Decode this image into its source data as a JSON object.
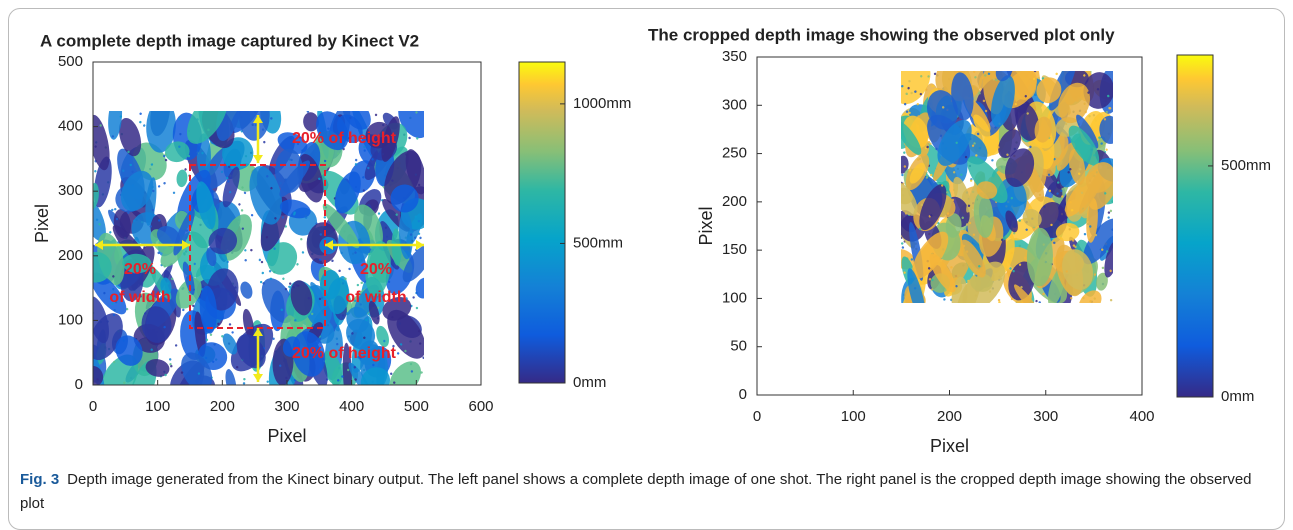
{
  "chart_data": [
    {
      "type": "image",
      "title": "A complete depth image captured by Kinect V2",
      "xlabel": "Pixel",
      "ylabel": "Pixel",
      "xlim": [
        0,
        600
      ],
      "xticks": [
        0,
        100,
        200,
        300,
        400,
        500,
        600
      ],
      "ylim": [
        0,
        500
      ],
      "yticks": [
        0,
        100,
        200,
        300,
        400,
        500
      ],
      "clim": [
        0,
        1150
      ],
      "cticks": [
        {
          "value": 0,
          "label": "0mm"
        },
        {
          "value": 500,
          "label": "500mm"
        },
        {
          "value": 1000,
          "label": "1000mm"
        }
      ],
      "annotations": [
        "20% of height",
        "20% of height",
        "20%",
        "of width",
        "20%",
        "of width"
      ]
    },
    {
      "type": "image",
      "title": "The cropped depth image showing the observed plot only",
      "xlabel": "Pixel",
      "ylabel": "Pixel",
      "xlim": [
        0,
        400
      ],
      "xticks": [
        0,
        100,
        200,
        300,
        400
      ],
      "ylim": [
        0,
        350
      ],
      "yticks": [
        0,
        50,
        100,
        150,
        200,
        250,
        300,
        350
      ],
      "clim": [
        0,
        740
      ],
      "cticks": [
        {
          "value": 0,
          "label": "0mm"
        },
        {
          "value": 500,
          "label": "500mm"
        }
      ]
    }
  ],
  "caption": {
    "label": "Fig. 3",
    "text": "Depth image generated from the Kinect binary output. The left panel shows a complete depth image of one shot. The right panel is the cropped depth image showing the observed plot"
  }
}
